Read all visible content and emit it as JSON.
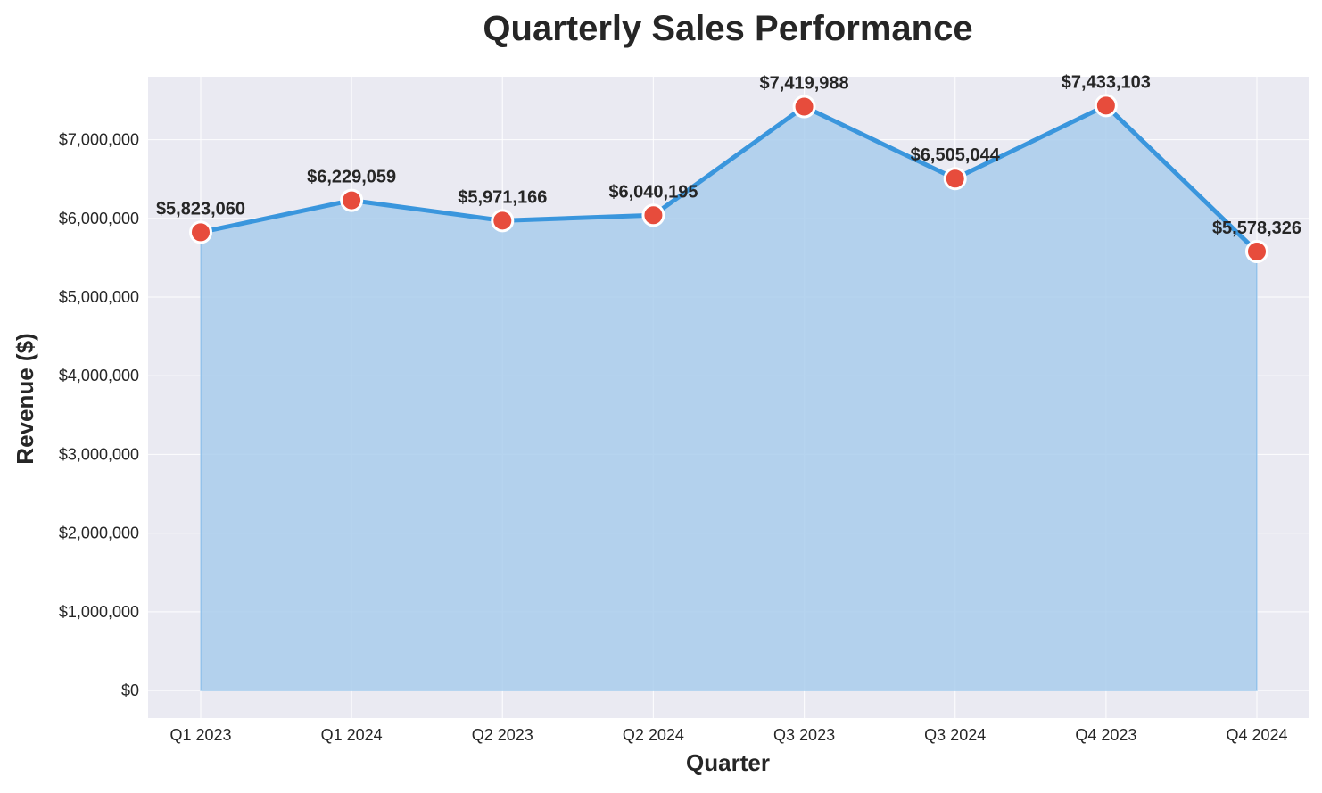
{
  "chart_data": {
    "type": "area",
    "title": "Quarterly Sales Performance",
    "xlabel": "Quarter",
    "ylabel": "Revenue ($)",
    "categories": [
      "Q1 2023",
      "Q1 2024",
      "Q2 2023",
      "Q2 2024",
      "Q3 2023",
      "Q3 2024",
      "Q4 2023",
      "Q4 2024"
    ],
    "values": [
      5823060,
      6229059,
      5971166,
      6040195,
      7419988,
      6505044,
      7433103,
      5578326
    ],
    "value_labels": [
      "$5,823,060",
      "$6,229,059",
      "$5,971,166",
      "$6,040,195",
      "$7,419,988",
      "$6,505,044",
      "$7,433,103",
      "$5,578,326"
    ],
    "ylim": [
      -350000,
      7800000
    ],
    "yticks": [
      0,
      1000000,
      2000000,
      3000000,
      4000000,
      5000000,
      6000000,
      7000000
    ],
    "ytick_labels": [
      "$0",
      "$1,000,000",
      "$2,000,000",
      "$3,000,000",
      "$4,000,000",
      "$5,000,000",
      "$6,000,000",
      "$7,000,000"
    ],
    "grid": true,
    "legend": "none",
    "colors": {
      "line": "#3a96dd",
      "fill": "#a9cdec",
      "marker": "#e74c3c",
      "marker_edge": "#ffffff",
      "plot_background": "#eaeaf2",
      "grid": "#ffffff"
    }
  }
}
